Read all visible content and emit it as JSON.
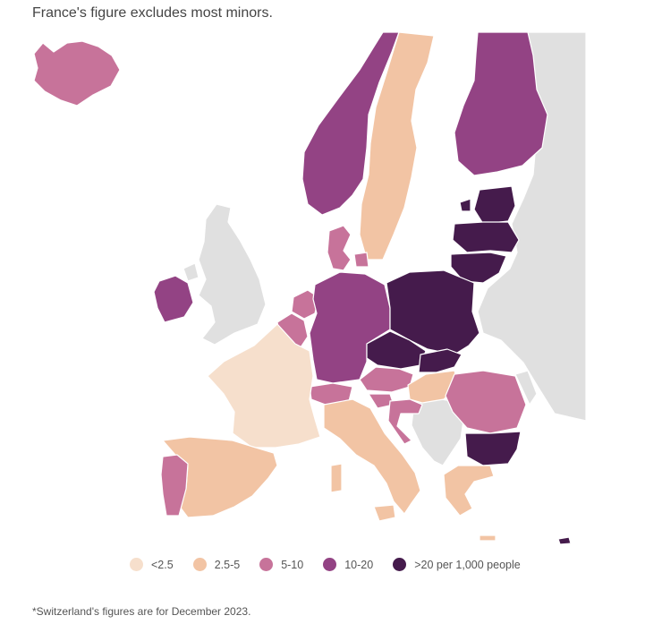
{
  "subtitle": "France's figure excludes most minors.",
  "footnote": "*Switzerland's figures are for December 2023.",
  "colors": {
    "no_data": "#e0e0e0",
    "lt_2_5": "#f6dfcc",
    "c_2_5_5": "#f2c4a4",
    "c_5_10": "#c7739a",
    "c_10_20": "#934384",
    "gt_20": "#451b4c"
  },
  "legend": [
    {
      "label": "<2.5",
      "color": "#f6dfcc"
    },
    {
      "label": "2.5-5",
      "color": "#f2c4a4"
    },
    {
      "label": "5-10",
      "color": "#c7739a"
    },
    {
      "label": "10-20",
      "color": "#934384"
    },
    {
      "label": ">20 per 1,000 people",
      "color": "#451b4c"
    }
  ]
}
